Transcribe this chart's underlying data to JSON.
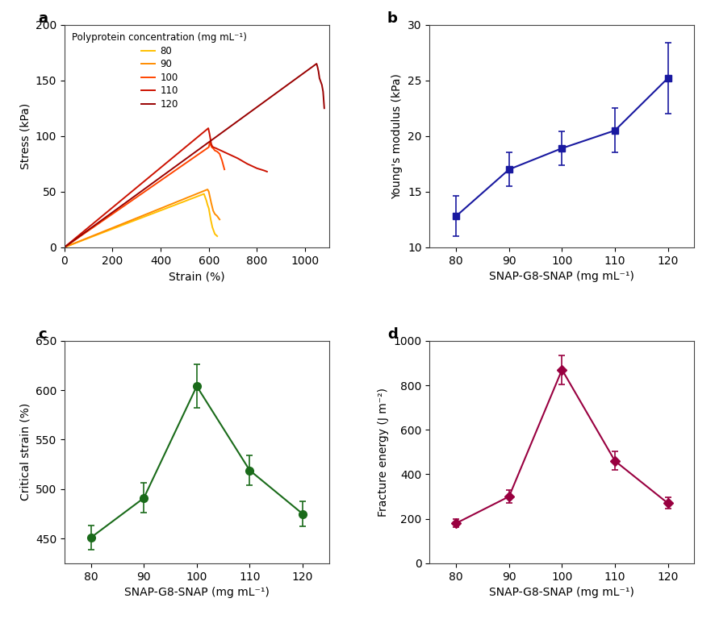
{
  "panel_a": {
    "colors": [
      "#FFC000",
      "#FF8C00",
      "#FF4500",
      "#CC1100",
      "#990000"
    ],
    "concentrations": [
      80,
      90,
      100,
      110,
      120
    ],
    "curve_80": {
      "strain": [
        0,
        580,
        585,
        590,
        595,
        600,
        608,
        615,
        625,
        635
      ],
      "stress": [
        0,
        48,
        45,
        42,
        38,
        35,
        25,
        18,
        12,
        10
      ]
    },
    "curve_90": {
      "strain": [
        0,
        595,
        600,
        605,
        610,
        618,
        625,
        635,
        645
      ],
      "stress": [
        0,
        52,
        50,
        45,
        40,
        33,
        30,
        28,
        25
      ]
    },
    "curve_100": {
      "strain": [
        0,
        600,
        605,
        608,
        612,
        618,
        625,
        635,
        645,
        655,
        665
      ],
      "stress": [
        0,
        90,
        95,
        92,
        90,
        89,
        87,
        86,
        84,
        78,
        70
      ]
    },
    "curve_110": {
      "strain": [
        0,
        598,
        603,
        607,
        610,
        614,
        618,
        630,
        650,
        680,
        720,
        760,
        800,
        830,
        842
      ],
      "stress": [
        0,
        107,
        102,
        97,
        93,
        91,
        90,
        89,
        87,
        84,
        80,
        75,
        71,
        69,
        68
      ]
    },
    "curve_120": {
      "strain": [
        0,
        1048,
        1052,
        1056,
        1060,
        1065,
        1070,
        1075,
        1080
      ],
      "stress": [
        0,
        165,
        162,
        158,
        152,
        149,
        146,
        140,
        125
      ]
    },
    "xlabel": "Strain (%)",
    "ylabel": "Stress (kPa)",
    "xlim": [
      0,
      1100
    ],
    "ylim": [
      0,
      200
    ],
    "xticks": [
      0,
      200,
      400,
      600,
      800,
      1000
    ],
    "yticks": [
      0,
      50,
      100,
      150,
      200
    ],
    "legend_title": "Polyprotein concentration (mg mL⁻¹)",
    "legend_entries": [
      "80",
      "90",
      "100",
      "110",
      "120"
    ]
  },
  "panel_b": {
    "x": [
      80,
      90,
      100,
      110,
      120
    ],
    "y": [
      12.8,
      17.0,
      18.9,
      20.5,
      25.2
    ],
    "yerr": [
      1.8,
      1.5,
      1.5,
      2.0,
      3.2
    ],
    "color": "#1919A0",
    "marker": "s",
    "markersize": 6,
    "xlabel": "SNAP-G8-SNAP (mg mL⁻¹)",
    "ylabel": "Young's modulus (kPa)",
    "xlim": [
      75,
      125
    ],
    "ylim": [
      10,
      30
    ],
    "xticks": [
      80,
      90,
      100,
      110,
      120
    ],
    "yticks": [
      10,
      15,
      20,
      25,
      30
    ]
  },
  "panel_c": {
    "x": [
      80,
      90,
      100,
      110,
      120
    ],
    "y": [
      451,
      491,
      604,
      519,
      475
    ],
    "yerr": [
      12,
      15,
      22,
      15,
      13
    ],
    "color": "#1A6B1A",
    "marker": "o",
    "markersize": 7,
    "xlabel": "SNAP-G8-SNAP (mg mL⁻¹)",
    "ylabel": "Critical strain (%)",
    "xlim": [
      75,
      125
    ],
    "ylim": [
      425,
      650
    ],
    "xticks": [
      80,
      90,
      100,
      110,
      120
    ],
    "yticks": [
      450,
      500,
      550,
      600,
      650
    ]
  },
  "panel_d": {
    "x": [
      80,
      90,
      100,
      110,
      120
    ],
    "y": [
      180,
      300,
      870,
      460,
      270
    ],
    "yerr": [
      18,
      30,
      65,
      42,
      25
    ],
    "color": "#990040",
    "marker": "D",
    "markersize": 6,
    "xlabel": "SNAP-G8-SNAP (mg mL⁻¹)",
    "ylabel": "Fracture energy (J m⁻²)",
    "xlim": [
      75,
      125
    ],
    "ylim": [
      0,
      1000
    ],
    "xticks": [
      80,
      90,
      100,
      110,
      120
    ],
    "yticks": [
      0,
      200,
      400,
      600,
      800,
      1000
    ]
  },
  "panel_labels": [
    "a",
    "b",
    "c",
    "d"
  ],
  "label_fontsize": 13,
  "axis_fontsize": 10,
  "tick_fontsize": 10
}
